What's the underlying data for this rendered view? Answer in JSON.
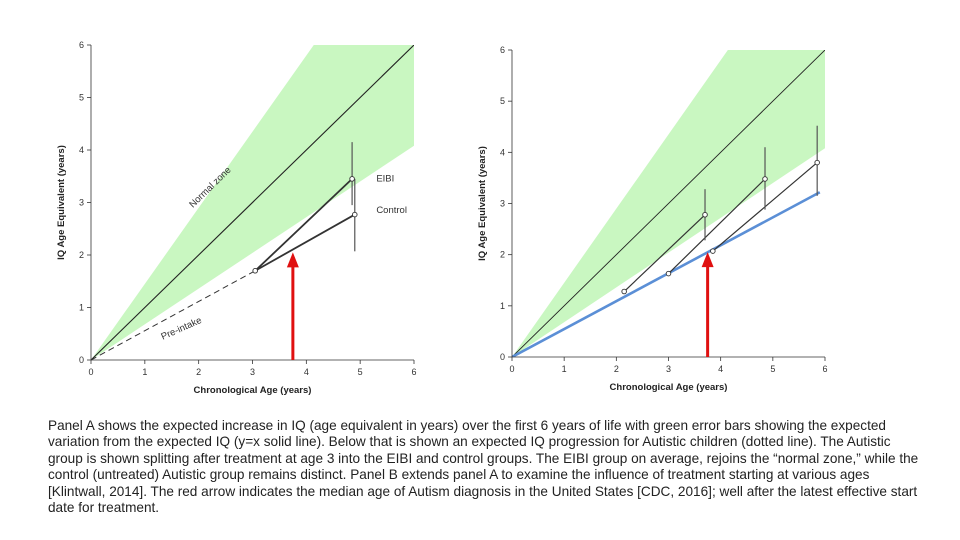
{
  "colors": {
    "normal_zone": "#c9f7c1",
    "identity_line": "#222222",
    "data_line": "#333333",
    "blue_line": "#5b8fd6",
    "arrow": "#e01010"
  },
  "chart_data": [
    {
      "type": "line",
      "panel": "A",
      "xlabel": "Chronological Age (years)",
      "ylabel": "IQ Age Equivalent (years)",
      "xlim": [
        0,
        6
      ],
      "ylim": [
        0,
        6
      ],
      "x_ticks": [
        "0",
        "1",
        "2",
        "3",
        "4",
        "5",
        "6"
      ],
      "y_ticks": [
        "0",
        "1",
        "2",
        "3",
        "4",
        "5",
        "6"
      ],
      "normal_zone": {
        "lower_slope": 0.68,
        "upper_slope": 1.45
      },
      "identity_line": [
        [
          0,
          0
        ],
        [
          6,
          6
        ]
      ],
      "series": [
        {
          "points": [
            [
              0,
              0
            ],
            [
              3.05,
              1.7
            ]
          ],
          "style": "dashed"
        },
        {
          "points": [
            [
              3.05,
              1.7
            ],
            [
              4.85,
              3.45
            ]
          ]
        },
        {
          "points": [
            [
              3.05,
              1.7
            ],
            [
              4.9,
              2.77
            ]
          ]
        }
      ],
      "error_bars": [
        {
          "x": 4.85,
          "y": 3.45,
          "low": 2.95,
          "high": 4.15
        },
        {
          "x": 4.9,
          "y": 2.77,
          "low": 2.07,
          "high": 3.45
        }
      ],
      "annotations": [
        {
          "text": "Normal zone",
          "x": 2.25,
          "y": 3.25,
          "rotate_with_line": true
        },
        {
          "text": "Pre-intake",
          "x": 1.7,
          "y": 0.55,
          "rotate": -24
        },
        {
          "text": "EIBI",
          "x": 5.3,
          "y": 3.4
        },
        {
          "text": "Control",
          "x": 5.3,
          "y": 2.8
        }
      ],
      "arrow": {
        "x": 3.75,
        "from_y": 0,
        "to_y": 2.05
      }
    },
    {
      "type": "line",
      "panel": "B",
      "xlabel": "Chronological Age (years)",
      "ylabel": "IQ Age Equivalent (years)",
      "xlim": [
        0,
        6
      ],
      "ylim": [
        0,
        6
      ],
      "x_ticks": [
        "0",
        "1",
        "2",
        "3",
        "4",
        "5",
        "6"
      ],
      "y_ticks": [
        "0",
        "1",
        "2",
        "3",
        "4",
        "5",
        "6"
      ],
      "normal_zone": {
        "lower_slope": 0.68,
        "upper_slope": 1.45
      },
      "identity_line": [
        [
          0,
          0
        ],
        [
          6,
          6
        ]
      ],
      "blue_line": [
        [
          0,
          0
        ],
        [
          5.9,
          3.22
        ]
      ],
      "series": [
        {
          "points": [
            [
              2.15,
              1.28
            ],
            [
              3.7,
              2.78
            ]
          ]
        },
        {
          "points": [
            [
              3.0,
              1.63
            ],
            [
              4.85,
              3.48
            ]
          ]
        },
        {
          "points": [
            [
              3.85,
              2.07
            ],
            [
              5.85,
              3.8
            ]
          ]
        }
      ],
      "error_bars": [
        {
          "x": 3.7,
          "y": 2.78,
          "low": 2.28,
          "high": 3.28
        },
        {
          "x": 4.85,
          "y": 3.48,
          "low": 2.88,
          "high": 4.1
        },
        {
          "x": 5.85,
          "y": 3.8,
          "low": 3.15,
          "high": 4.52
        }
      ],
      "arrow": {
        "x": 3.75,
        "from_y": 0,
        "to_y": 2.05
      }
    }
  ],
  "caption": "Panel A shows the expected increase in IQ (age equivalent in years) over the first 6 years of life with green error bars showing the expected variation from the expected IQ (y=x solid line). Below that is shown an expected IQ progression for Autistic children (dotted line). The Autistic group is shown splitting after treatment at age 3 into the EIBI and control groups. The EIBI group on average, rejoins the “normal zone,” while the control (untreated) Autistic group remains distinct. Panel B extends panel A to examine the influence of treatment starting at various ages [Klintwall, 2014]. The red arrow indicates the median age of Autism diagnosis in the United States [CDC, 2016]; well after the latest effective start date for treatment."
}
